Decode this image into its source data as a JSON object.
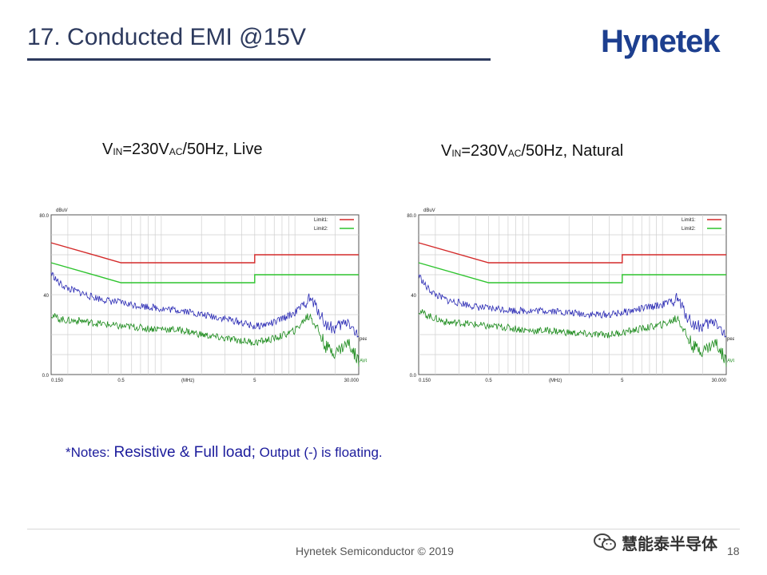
{
  "slide": {
    "title": "17. Conducted EMI @15V",
    "logo": "Hynetek",
    "notes_prefix": "*Notes: ",
    "notes_main": "Resistive & Full load;",
    "notes_suffix": " Output (-) is floating.",
    "footer": "Hynetek Semiconductor © 2019",
    "page_number": "18",
    "watermark": "慧能泰半导体"
  },
  "chart_titles": {
    "left": {
      "v": "V",
      "sub1": "IN",
      "mid": "=230V",
      "sub2": "AC",
      "rest": "/50Hz, Live"
    },
    "right": {
      "v": "V",
      "sub1": "IN",
      "mid": "=230V",
      "sub2": "AC",
      "rest": "/50Hz, Natural"
    }
  },
  "chart_data": [
    {
      "type": "line",
      "title": "VIN=230VAC/50Hz, Live",
      "xscale": "log",
      "xlim": [
        0.15,
        30
      ],
      "ylim": [
        0,
        80
      ],
      "ylabel": "dBuV",
      "xlabel": "(MHz)",
      "y_ticks": [
        "80.0",
        "40",
        "0.0"
      ],
      "x_ticks": [
        "0.150",
        "0.5",
        "(MHz)",
        "5",
        "30.000"
      ],
      "grid": true,
      "legend": "top-right",
      "series": [
        {
          "name": "Limit1:",
          "color": "#d42a2a",
          "x": [
            0.15,
            0.5,
            5,
            5,
            30
          ],
          "y": [
            66,
            56,
            56,
            60,
            60
          ]
        },
        {
          "name": "Limit2:",
          "color": "#2ec42e",
          "x": [
            0.15,
            0.5,
            5,
            5,
            30
          ],
          "y": [
            56,
            46,
            46,
            50,
            50
          ]
        },
        {
          "name": "peak",
          "color": "#2a2ab4",
          "x": [
            0.15,
            0.17,
            0.2,
            0.25,
            0.3,
            0.4,
            0.5,
            0.6,
            0.8,
            1,
            1.5,
            2,
            3,
            4,
            5,
            7,
            10,
            12,
            13,
            15,
            17,
            20,
            25,
            30
          ],
          "y": [
            51,
            46,
            43,
            41,
            39,
            37,
            36,
            35,
            34,
            33,
            32,
            30,
            28,
            26,
            24,
            26,
            31,
            36,
            38,
            32,
            25,
            23,
            27,
            18
          ]
        },
        {
          "name": "AVG",
          "color": "#1a8a1a",
          "x": [
            0.15,
            0.17,
            0.2,
            0.25,
            0.3,
            0.4,
            0.5,
            0.6,
            0.8,
            1,
            1.5,
            2,
            3,
            4,
            5,
            7,
            10,
            12,
            13,
            15,
            17,
            20,
            25,
            30
          ],
          "y": [
            30,
            28,
            27,
            27,
            26,
            25,
            24,
            24,
            23,
            23,
            22,
            20,
            18,
            17,
            16,
            18,
            22,
            28,
            30,
            22,
            14,
            11,
            16,
            7
          ]
        }
      ]
    },
    {
      "type": "line",
      "title": "VIN=230VAC/50Hz, Natural",
      "xscale": "log",
      "xlim": [
        0.15,
        30
      ],
      "ylim": [
        0,
        80
      ],
      "ylabel": "dBuV",
      "xlabel": "(MHz)",
      "y_ticks": [
        "80.0",
        "40",
        "0.0"
      ],
      "x_ticks": [
        "0.150",
        "0.5",
        "(MHz)",
        "5",
        "30.000"
      ],
      "grid": true,
      "legend": "top-right",
      "series": [
        {
          "name": "Limit1:",
          "color": "#d42a2a",
          "x": [
            0.15,
            0.5,
            5,
            5,
            30
          ],
          "y": [
            66,
            56,
            56,
            60,
            60
          ]
        },
        {
          "name": "Limit2:",
          "color": "#2ec42e",
          "x": [
            0.15,
            0.5,
            5,
            5,
            30
          ],
          "y": [
            56,
            46,
            46,
            50,
            50
          ]
        },
        {
          "name": "peak",
          "color": "#2a2ab4",
          "x": [
            0.15,
            0.17,
            0.2,
            0.25,
            0.3,
            0.4,
            0.5,
            0.6,
            0.8,
            1,
            1.5,
            2,
            3,
            4,
            5,
            7,
            10,
            12,
            13,
            15,
            17,
            20,
            25,
            30
          ],
          "y": [
            50,
            44,
            40,
            37,
            36,
            34,
            33,
            33,
            32,
            32,
            32,
            31,
            30,
            30,
            31,
            33,
            35,
            37,
            38,
            30,
            25,
            24,
            27,
            18
          ]
        },
        {
          "name": "AVG",
          "color": "#1a8a1a",
          "x": [
            0.15,
            0.17,
            0.2,
            0.25,
            0.3,
            0.4,
            0.5,
            0.6,
            0.8,
            1,
            1.5,
            2,
            3,
            4,
            5,
            7,
            10,
            12,
            13,
            15,
            17,
            20,
            25,
            30
          ],
          "y": [
            32,
            30,
            28,
            26,
            26,
            25,
            24,
            24,
            23,
            22,
            22,
            21,
            20,
            20,
            21,
            23,
            25,
            27,
            29,
            20,
            14,
            12,
            16,
            7
          ]
        }
      ]
    }
  ]
}
